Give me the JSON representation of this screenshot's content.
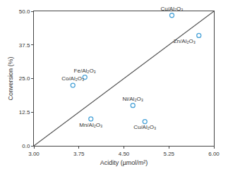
{
  "chart_data": {
    "type": "scatter",
    "x_label": "Acidity (µmol/m²)",
    "y_label": "Conversion (%)",
    "series": [
      {
        "type": "scatter",
        "color": "#4aa3d8",
        "marker": "open_circle",
        "labels": [
          "Cu/Al₂O₃",
          "Zn/Al₂O₃",
          "Fe/Al₂O₃",
          "Co/Al₂O₃",
          "Ni/Al₂O₃",
          "Mn/Al₂O₃",
          "Cu/Al₂O₃"
        ],
        "x": [
          5.3,
          5.75,
          3.85,
          3.65,
          4.65,
          3.95,
          4.85
        ],
        "values": [
          48.5,
          41,
          25.5,
          22.5,
          15,
          10,
          9
        ]
      },
      {
        "type": "line",
        "color": "#555555",
        "line_style": "solid",
        "x": [
          3,
          6
        ],
        "values": [
          0,
          50
        ]
      }
    ],
    "xlim": [
      3,
      6
    ],
    "xticks": [
      {
        "value": 3,
        "label": "3.00"
      },
      3.75,
      {
        "value": 4.5,
        "label": "4.50"
      },
      5.25,
      {
        "value": 6,
        "label": "6.00"
      }
    ],
    "ylim": [
      0,
      50
    ],
    "yticks": [
      {
        "value": 0,
        "label": "0.0"
      },
      12.5,
      {
        "value": 25,
        "label": "25.0"
      },
      37.5,
      {
        "value": 50,
        "label": "50.0"
      }
    ],
    "grid": false
  }
}
